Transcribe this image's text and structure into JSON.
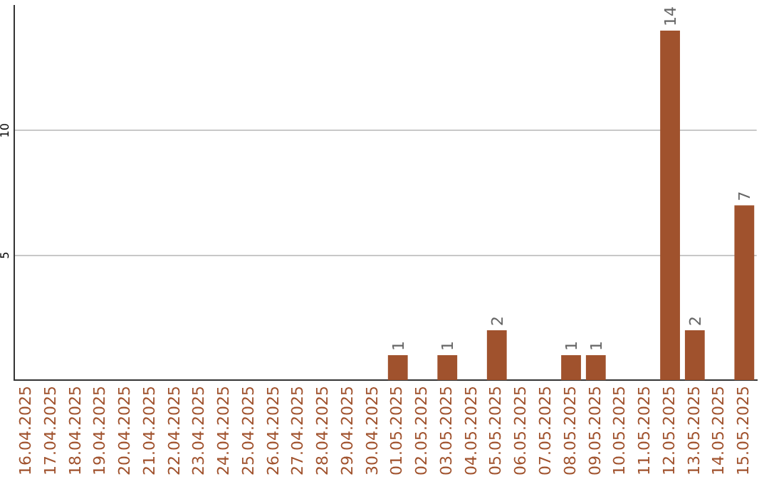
{
  "chart_data": {
    "type": "bar",
    "categories": [
      "16.04.2025",
      "17.04.2025",
      "18.04.2025",
      "19.04.2025",
      "20.04.2025",
      "21.04.2025",
      "22.04.2025",
      "23.04.2025",
      "24.04.2025",
      "25.04.2025",
      "26.04.2025",
      "27.04.2025",
      "28.04.2025",
      "29.04.2025",
      "30.04.2025",
      "01.05.2025",
      "02.05.2025",
      "03.05.2025",
      "04.05.2025",
      "05.05.2025",
      "06.05.2025",
      "07.05.2025",
      "08.05.2025",
      "09.05.2025",
      "10.05.2025",
      "11.05.2025",
      "12.05.2025",
      "13.05.2025",
      "14.05.2025",
      "15.05.2025"
    ],
    "values": [
      0,
      0,
      0,
      0,
      0,
      0,
      0,
      0,
      0,
      0,
      0,
      0,
      0,
      0,
      0,
      1,
      0,
      1,
      0,
      2,
      0,
      0,
      1,
      1,
      0,
      0,
      14,
      2,
      0,
      7
    ],
    "value_labels": [
      null,
      null,
      null,
      null,
      null,
      null,
      null,
      null,
      null,
      null,
      null,
      null,
      null,
      null,
      null,
      "1",
      null,
      "1",
      null,
      "2",
      null,
      null,
      "1",
      "1",
      null,
      null,
      "14",
      "2",
      null,
      "7"
    ],
    "color": "#a0522d",
    "ylim": [
      0,
      15
    ],
    "yticks": [
      5,
      10
    ],
    "grid": "y"
  }
}
